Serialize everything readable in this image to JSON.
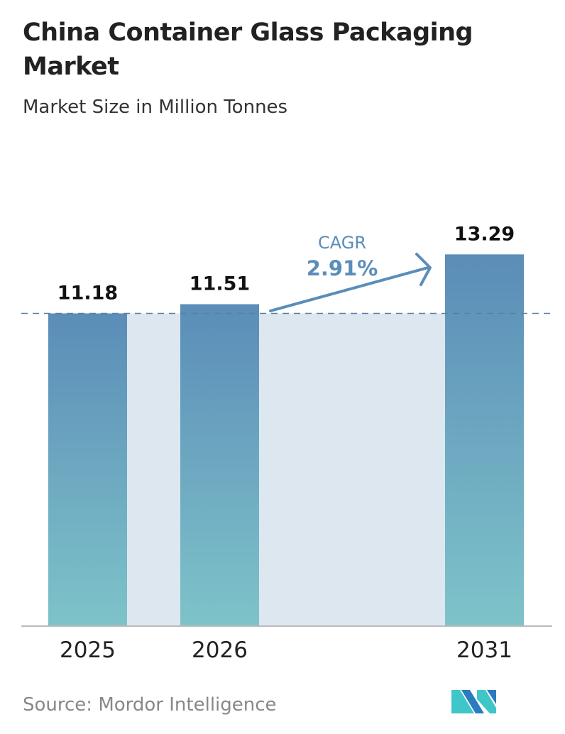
{
  "title": "China Container Glass Packaging Market",
  "subtitle": "Market Size in Million Tonnes",
  "source": "Source:  Mordor Intelligence",
  "logo_text": "MI",
  "colors": {
    "bar_top": "#5b8db8",
    "bar_bottom": "#7ec3c9",
    "band": "#dde7f0",
    "cagr": "#5b8db8",
    "logo_dark": "#2b7bbf",
    "logo_light": "#3fc6c9"
  },
  "chart_data": {
    "type": "bar",
    "categories": [
      "2025",
      "2026",
      "2031"
    ],
    "values": [
      11.18,
      11.51,
      13.29
    ],
    "data_labels": [
      "11.18",
      "11.51",
      "13.29"
    ],
    "ylim": [
      0,
      14
    ],
    "grid": false,
    "annotation": {
      "label": "CAGR",
      "value": "2.91%"
    }
  }
}
